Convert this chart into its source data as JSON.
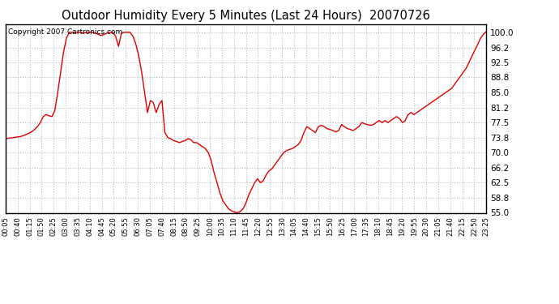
{
  "title": "Outdoor Humidity Every 5 Minutes (Last 24 Hours)  20070726",
  "copyright": "Copyright 2007 Cartronics.com",
  "line_color": "#dd0000",
  "bg_color": "#ffffff",
  "grid_color": "#bbbbbb",
  "ylim": [
    55.0,
    102.0
  ],
  "yticks": [
    55.0,
    58.8,
    62.5,
    66.2,
    70.0,
    73.8,
    77.5,
    81.2,
    85.0,
    88.8,
    92.5,
    96.2,
    100.0
  ],
  "x_labels": [
    "00:05",
    "00:40",
    "01:15",
    "01:50",
    "02:25",
    "03:00",
    "03:35",
    "04:10",
    "04:45",
    "05:20",
    "05:55",
    "06:30",
    "07:05",
    "07:40",
    "08:15",
    "08:50",
    "09:25",
    "10:00",
    "10:35",
    "11:10",
    "11:45",
    "12:20",
    "12:55",
    "13:30",
    "14:05",
    "14:40",
    "15:15",
    "15:50",
    "16:25",
    "17:00",
    "17:35",
    "18:10",
    "18:45",
    "19:20",
    "19:55",
    "20:30",
    "21:05",
    "21:40",
    "22:15",
    "22:50",
    "23:25"
  ],
  "y_values": [
    73.5,
    73.6,
    73.7,
    73.8,
    73.9,
    74.0,
    74.2,
    74.5,
    74.8,
    75.2,
    75.8,
    76.5,
    77.5,
    79.0,
    79.5,
    79.2,
    79.0,
    80.5,
    85.0,
    90.0,
    95.0,
    98.5,
    100.0,
    100.0,
    100.0,
    100.0,
    100.0,
    99.8,
    100.0,
    100.0,
    100.0,
    99.8,
    99.5,
    99.2,
    99.5,
    99.8,
    100.0,
    100.0,
    99.0,
    96.5,
    99.8,
    100.0,
    100.0,
    100.0,
    99.0,
    97.0,
    94.0,
    90.0,
    85.0,
    80.0,
    83.0,
    82.5,
    80.0,
    82.0,
    83.0,
    75.0,
    73.8,
    73.5,
    73.0,
    72.8,
    72.5,
    72.8,
    73.0,
    73.5,
    73.2,
    72.5,
    72.5,
    72.0,
    71.5,
    71.0,
    70.0,
    68.0,
    65.0,
    62.5,
    60.0,
    58.0,
    57.0,
    56.0,
    55.5,
    55.2,
    55.0,
    55.3,
    56.0,
    57.5,
    59.5,
    61.0,
    62.5,
    63.5,
    62.5,
    63.0,
    64.5,
    65.5,
    66.0,
    67.0,
    68.0,
    69.0,
    70.0,
    70.5,
    70.8,
    71.0,
    71.5,
    72.0,
    73.0,
    75.0,
    76.5,
    76.0,
    75.5,
    75.0,
    76.5,
    76.8,
    76.5,
    76.0,
    75.8,
    75.5,
    75.2,
    75.5,
    77.0,
    76.5,
    76.0,
    75.8,
    75.5,
    76.0,
    76.5,
    77.5,
    77.2,
    77.0,
    76.8,
    77.0,
    77.5,
    78.0,
    77.5,
    78.0,
    77.5,
    78.0,
    78.5,
    79.0,
    78.5,
    77.5,
    78.0,
    79.5,
    80.0,
    79.5,
    80.0,
    80.5,
    81.0,
    81.5,
    82.0,
    82.5,
    83.0,
    83.5,
    84.0,
    84.5,
    85.0,
    85.5,
    86.0,
    87.0,
    88.0,
    89.0,
    90.0,
    91.0,
    92.5,
    94.0,
    95.5,
    97.0,
    98.5,
    99.5,
    100.2
  ]
}
